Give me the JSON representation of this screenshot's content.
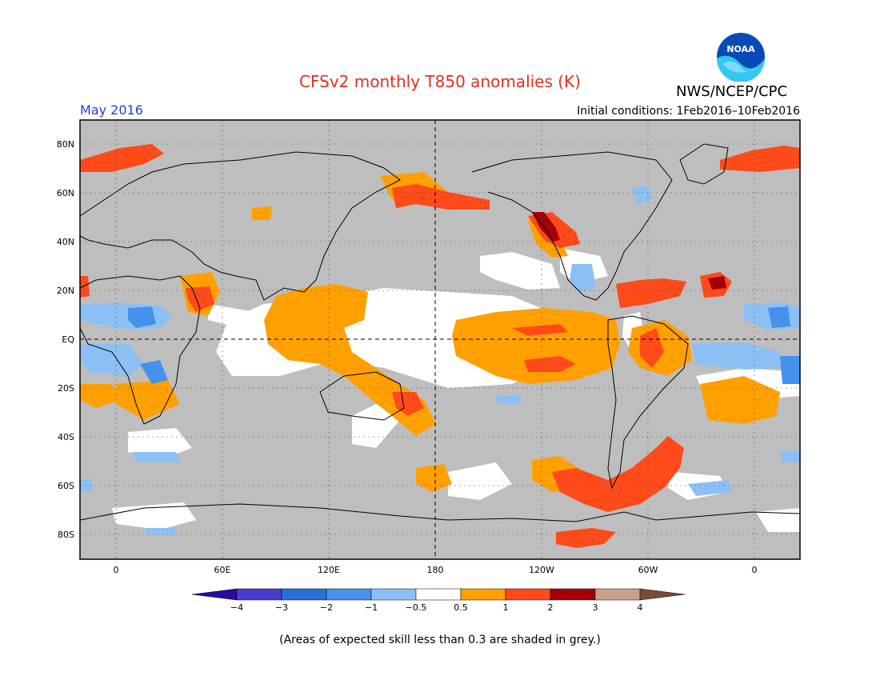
{
  "title": "CFSv2 monthly T850 anomalies (K)",
  "period": "May 2016",
  "initial_conditions": "Initial conditions: 1Feb2016–10Feb2016",
  "agency": "NWS/NCEP/CPC",
  "logo_text": "NOAA",
  "skill_note": "(Areas of expected skill less than 0.3 are shaded in grey.)",
  "lat_labels": [
    "80N",
    "60N",
    "40N",
    "20N",
    "EQ",
    "20S",
    "40S",
    "60S",
    "80S"
  ],
  "lon_labels": [
    "0",
    "60E",
    "120E",
    "180",
    "120W",
    "60W",
    "0"
  ],
  "colorbar": {
    "labels": [
      "−4",
      "−3",
      "−2",
      "−1",
      "−0.5",
      "0.5",
      "1",
      "2",
      "3",
      "4"
    ],
    "colors": [
      "#2a0aa0",
      "#4a3ccf",
      "#2a6fd8",
      "#4592ec",
      "#8cc0f5",
      "#ffffff",
      "#ffa000",
      "#ff4a1a",
      "#a40008",
      "#c8a090",
      "#7a4a38"
    ]
  },
  "colors": {
    "grey": "#bebebe",
    "white": "#ffffff",
    "orange": "#ffa000",
    "red": "#ff4a1a",
    "darkred": "#a40008",
    "lightblue": "#8cc0f5",
    "blue": "#4592ec"
  }
}
